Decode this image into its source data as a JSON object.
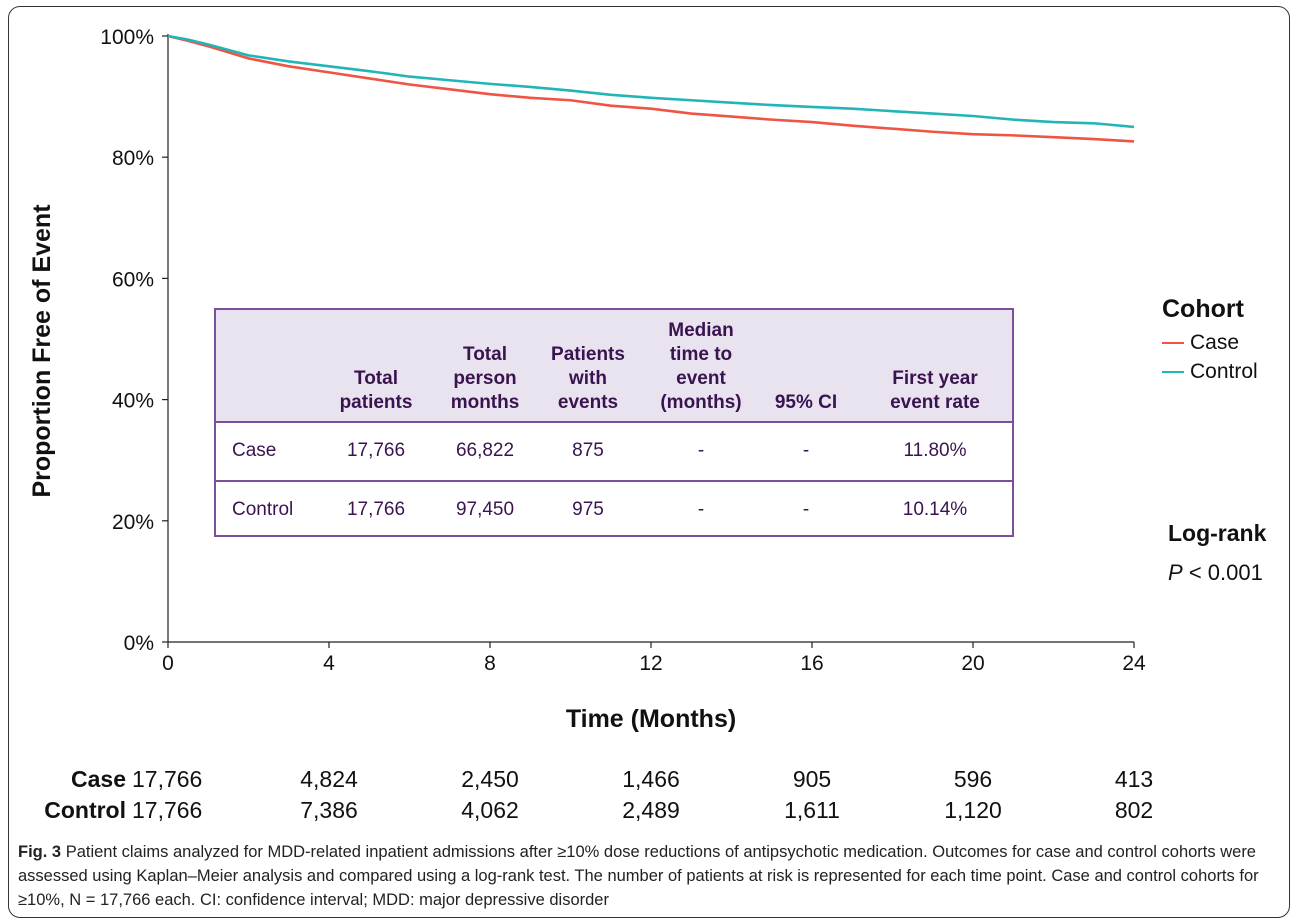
{
  "chart_data": {
    "type": "line",
    "xlabel": "Time (Months)",
    "ylabel": "Proportion Free of Event",
    "xlim": [
      0,
      24
    ],
    "ylim": [
      0,
      100
    ],
    "x_ticks": [
      "0",
      "4",
      "8",
      "12",
      "16",
      "20",
      "24"
    ],
    "y_ticks": [
      "0%",
      "20%",
      "40%",
      "60%",
      "80%",
      "100%"
    ],
    "grid": false,
    "legend": {
      "title": "Cohort",
      "placement": "right"
    },
    "series": [
      {
        "name": "Case",
        "color": "#ee5544",
        "x": [
          0,
          0.5,
          1,
          2,
          3,
          4,
          5,
          6,
          7,
          8,
          9,
          10,
          11,
          12,
          13,
          14,
          15,
          16,
          17,
          18,
          19,
          20,
          21,
          22,
          23,
          24
        ],
        "y": [
          100,
          99.2,
          98.3,
          96.3,
          95.0,
          94.0,
          93.0,
          92.0,
          91.2,
          90.4,
          89.8,
          89.4,
          88.5,
          88.0,
          87.2,
          86.7,
          86.2,
          85.8,
          85.2,
          84.7,
          84.2,
          83.8,
          83.6,
          83.3,
          83.0,
          82.6
        ]
      },
      {
        "name": "Control",
        "color": "#22b5b8",
        "x": [
          0,
          0.5,
          1,
          2,
          3,
          4,
          5,
          6,
          7,
          8,
          9,
          10,
          11,
          12,
          13,
          14,
          15,
          16,
          17,
          18,
          19,
          20,
          21,
          22,
          23,
          24
        ],
        "y": [
          100,
          99.4,
          98.6,
          96.8,
          95.8,
          95.0,
          94.2,
          93.3,
          92.7,
          92.1,
          91.6,
          91.0,
          90.3,
          89.8,
          89.4,
          89.0,
          88.6,
          88.3,
          88.0,
          87.6,
          87.2,
          86.8,
          86.2,
          85.8,
          85.6,
          85.0
        ]
      }
    ]
  },
  "summary_table": {
    "headers": [
      "",
      "Total\npatients",
      "Total\nperson\nmonths",
      "Patients\nwith\nevents",
      "Median\ntime to\nevent\n(months)",
      "95% CI",
      "First year\nevent rate"
    ],
    "rows": [
      [
        "Case",
        "17,766",
        "66,822",
        "875",
        "-",
        "-",
        "11.80%"
      ],
      [
        "Control",
        "17,766",
        "97,450",
        "975",
        "-",
        "-",
        "10.14%"
      ]
    ]
  },
  "legend": {
    "title": "Cohort",
    "items": [
      {
        "label": "Case",
        "color": "#ee5544"
      },
      {
        "label": "Control",
        "color": "#22b5b8"
      }
    ]
  },
  "logrank": {
    "title": "Log-rank",
    "p_symbol": "P",
    "p_value": "< 0.001"
  },
  "at_risk": {
    "rows": [
      {
        "label": "Case",
        "values": [
          "17,766",
          "4,824",
          "2,450",
          "1,466",
          "905",
          "596",
          "413"
        ]
      },
      {
        "label": "Control",
        "values": [
          "17,766",
          "7,386",
          "4,062",
          "2,489",
          "1,611",
          "1,120",
          "802"
        ]
      }
    ]
  },
  "caption": {
    "label": "Fig. 3",
    "text": "Patient claims analyzed for MDD-related inpatient admissions after ≥10% dose reductions of antipsychotic medication. Outcomes for case and control cohorts were assessed using Kaplan–Meier analysis and compared using a log-rank test. The number of patients at risk is represented for each time point. Case and control cohorts for ≥10%, N = 17,766 each. CI: confidence interval; MDD: major depressive disorder"
  }
}
